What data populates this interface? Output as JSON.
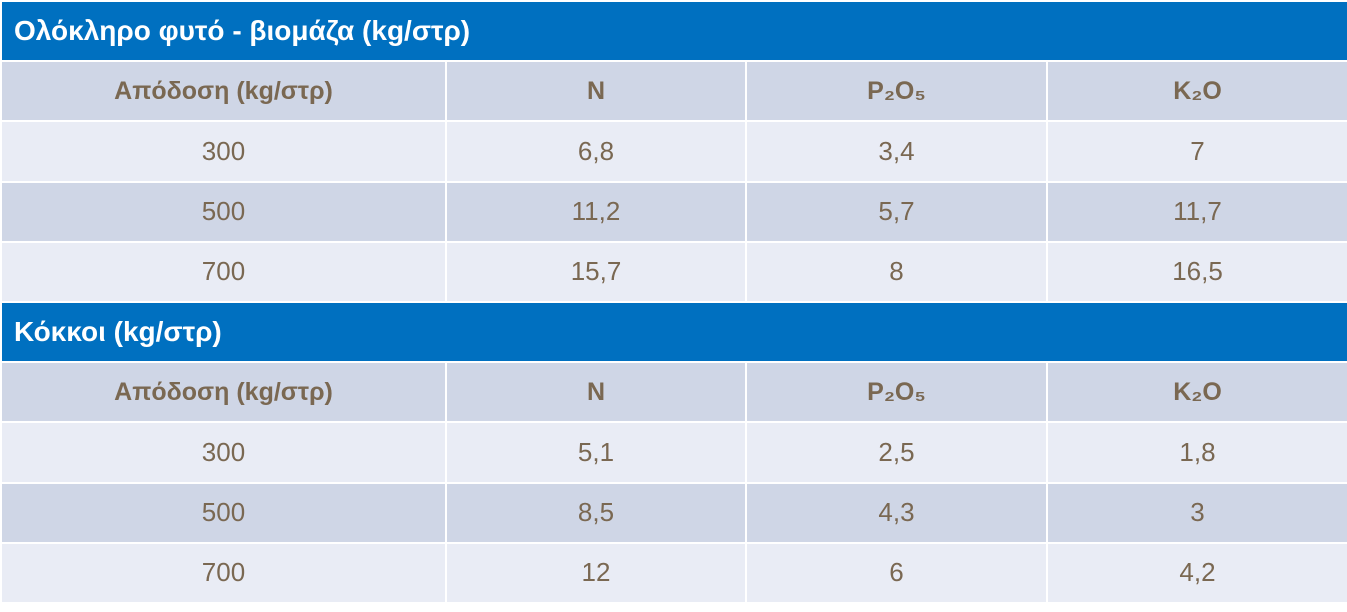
{
  "sections": [
    {
      "title": "Ολόκληρο φυτό - βιομάζα (kg/στρ)",
      "header": [
        "Απόδοση (kg/στρ)",
        "N",
        "P₂O₅",
        "K₂O"
      ],
      "rows": [
        [
          "300",
          "6,8",
          "3,4",
          "7"
        ],
        [
          "500",
          "11,2",
          "5,7",
          "11,7"
        ],
        [
          "700",
          "15,7",
          "8",
          "16,5"
        ]
      ]
    },
    {
      "title": "Κόκκοι (kg/στρ)",
      "header": [
        "Απόδοση (kg/στρ)",
        "N",
        "P₂O₅",
        "K₂O"
      ],
      "rows": [
        [
          "300",
          "5,1",
          "2,5",
          "1,8"
        ],
        [
          "500",
          "8,5",
          "4,3",
          "3"
        ],
        [
          "700",
          "12",
          "6",
          "4,2"
        ]
      ]
    }
  ]
}
